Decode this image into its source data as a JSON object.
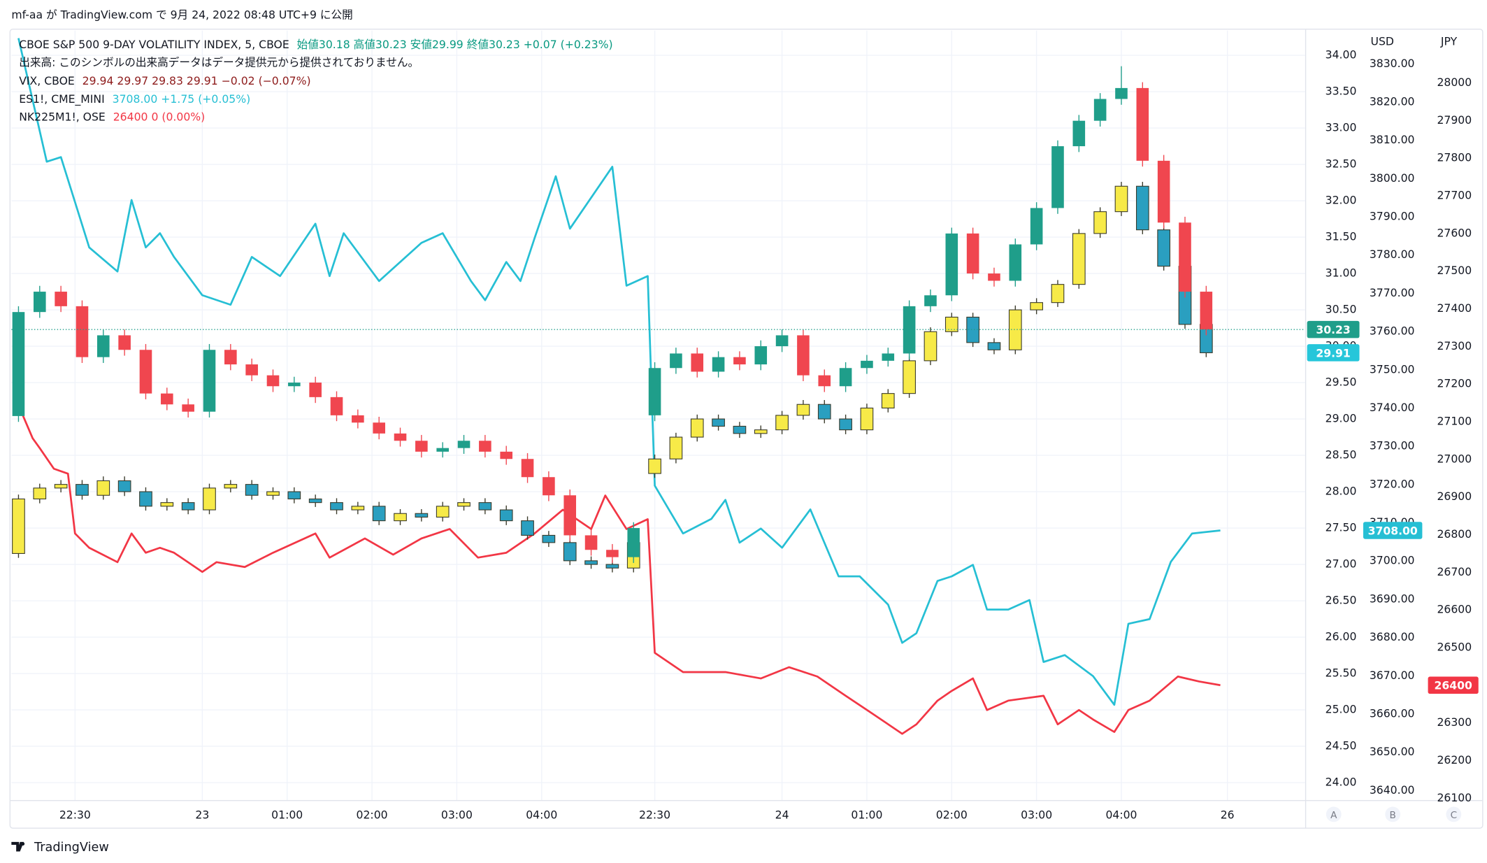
{
  "header": "mf-aa が TradingView.com で 9月 24, 2022 08:48 UTC+9 に公開",
  "footer": "TradingView",
  "controls": [
    "A",
    "B",
    "C"
  ],
  "chart_data": {
    "type": "candlestick",
    "grid": true,
    "volume_note": "出来高: このシンボルの出来高データはデータ提供元から提供されておりません。",
    "y2_label": "USD",
    "y3_label": "JPY",
    "xlim": [
      -1,
      182
    ],
    "xticks": [
      {
        "value": 8,
        "label": "22:30"
      },
      {
        "value": 26,
        "label": "23"
      },
      {
        "value": 38,
        "label": "01:00"
      },
      {
        "value": 50,
        "label": "02:00"
      },
      {
        "value": 62,
        "label": "03:00"
      },
      {
        "value": 74,
        "label": "04:00"
      },
      {
        "value": 90,
        "label": "22:30"
      },
      {
        "value": 108,
        "label": "24"
      },
      {
        "value": 120,
        "label": "01:00"
      },
      {
        "value": 132,
        "label": "02:00"
      },
      {
        "value": 144,
        "label": "03:00"
      },
      {
        "value": 156,
        "label": "04:00"
      },
      {
        "value": 171,
        "label": "26"
      }
    ],
    "ylim": [
      23.76,
      34.34
    ],
    "yticks": [
      {
        "value": 24,
        "label": "24.00"
      },
      {
        "value": 24.5,
        "label": "24.50"
      },
      {
        "value": 25,
        "label": "25.00"
      },
      {
        "value": 25.5,
        "label": "25.50"
      },
      {
        "value": 26,
        "label": "26.00"
      },
      {
        "value": 26.5,
        "label": "26.50"
      },
      {
        "value": 27,
        "label": "27.00"
      },
      {
        "value": 27.5,
        "label": "27.50"
      },
      {
        "value": 28,
        "label": "28.00"
      },
      {
        "value": 28.5,
        "label": "28.50"
      },
      {
        "value": 29,
        "label": "29.00"
      },
      {
        "value": 29.5,
        "label": "29.50"
      },
      {
        "value": 30,
        "label": "30.00"
      },
      {
        "value": 30.5,
        "label": "30.50"
      },
      {
        "value": 31,
        "label": "31.00"
      },
      {
        "value": 31.5,
        "label": "31.50"
      },
      {
        "value": 32,
        "label": "32.00"
      },
      {
        "value": 32.5,
        "label": "32.50"
      },
      {
        "value": 33,
        "label": "33.00"
      },
      {
        "value": 33.5,
        "label": "33.50"
      },
      {
        "value": 34,
        "label": "34.00"
      }
    ],
    "y2lim": [
      3637.5,
      3838.7
    ],
    "y2ticks": [
      {
        "value": 3640,
        "label": "3640.00"
      },
      {
        "value": 3650,
        "label": "3650.00"
      },
      {
        "value": 3660,
        "label": "3660.00"
      },
      {
        "value": 3670,
        "label": "3670.00"
      },
      {
        "value": 3680,
        "label": "3680.00"
      },
      {
        "value": 3690,
        "label": "3690.00"
      },
      {
        "value": 3700,
        "label": "3700.00"
      },
      {
        "value": 3710,
        "label": "3710.00"
      },
      {
        "value": 3720,
        "label": "3720.00"
      },
      {
        "value": 3730,
        "label": "3730.00"
      },
      {
        "value": 3740,
        "label": "3740.00"
      },
      {
        "value": 3750,
        "label": "3750.00"
      },
      {
        "value": 3760,
        "label": "3760.00"
      },
      {
        "value": 3770,
        "label": "3770.00"
      },
      {
        "value": 3780,
        "label": "3780.00"
      },
      {
        "value": 3790,
        "label": "3790.00"
      },
      {
        "value": 3800,
        "label": "3800.00"
      },
      {
        "value": 3810,
        "label": "3810.00"
      },
      {
        "value": 3820,
        "label": "3820.00"
      },
      {
        "value": 3830,
        "label": "3830.00"
      }
    ],
    "y3lim": [
      26095,
      28139
    ],
    "y3ticks": [
      26100,
      26200,
      26300,
      26400,
      26500,
      26600,
      26700,
      26800,
      26900,
      27000,
      27100,
      27200,
      27300,
      27400,
      27500,
      27600,
      27700,
      27800,
      27900,
      28000
    ],
    "series": [
      {
        "name": "NK225M1!, OSE",
        "legend": "26400  0 (0.00%)",
        "type": "line",
        "axis": "y3",
        "color": "#f23645",
        "last_label": "26400",
        "x": [
          0,
          2,
          3,
          5,
          7,
          8,
          10,
          14,
          16,
          18,
          20,
          22,
          26,
          28,
          32,
          36,
          42,
          44,
          49,
          53,
          57,
          61,
          65,
          69,
          73,
          77,
          81,
          83,
          86,
          89,
          90,
          94,
          100,
          105,
          109,
          113,
          117,
          121,
          125,
          127,
          130,
          132,
          135,
          137,
          140,
          145,
          147,
          150,
          152,
          155,
          157,
          160,
          164,
          167,
          170
        ],
        "values": [
          27144,
          27056,
          27030,
          26975,
          26962,
          26803,
          26765,
          26727,
          26803,
          26752,
          26765,
          26752,
          26701,
          26727,
          26714,
          26752,
          26803,
          26739,
          26790,
          26747,
          26790,
          26815,
          26739,
          26752,
          26803,
          26866,
          26815,
          26904,
          26815,
          26841,
          26486,
          26435,
          26435,
          26418,
          26448,
          26423,
          26372,
          26322,
          26271,
          26296,
          26359,
          26385,
          26418,
          26334,
          26359,
          26372,
          26296,
          26334,
          26309,
          26276,
          26334,
          26359,
          26423,
          26410,
          26400
        ]
      },
      {
        "name": "ES1!, CME_MINI",
        "legend": "3708.00  +1.75 (+0.05%)",
        "type": "line",
        "axis": "y2",
        "color": "#26bfd4",
        "last_label": "3708.00",
        "x": [
          0,
          4,
          6,
          10,
          14,
          16,
          18,
          20,
          22,
          26,
          30,
          33,
          37,
          42,
          44,
          46,
          51,
          57,
          60,
          64,
          66,
          69,
          71,
          73,
          76,
          78,
          84,
          86,
          89,
          90,
          94,
          98,
          100,
          102,
          105,
          108,
          112,
          116,
          119,
          123,
          125,
          127,
          130,
          132,
          135,
          137,
          140,
          143,
          145,
          148,
          152,
          155,
          157,
          160,
          163,
          166,
          170
        ],
        "values": [
          3836.7,
          3804.4,
          3805.6,
          3782.0,
          3775.7,
          3794.4,
          3782.0,
          3785.7,
          3779.5,
          3769.5,
          3767.0,
          3779.5,
          3774.5,
          3788.2,
          3774.5,
          3785.7,
          3773.2,
          3783.2,
          3785.7,
          3773.2,
          3768.2,
          3778.2,
          3773.2,
          3784.4,
          3800.6,
          3786.9,
          3803.1,
          3772.0,
          3774.5,
          3719.7,
          3707.2,
          3711.0,
          3716.0,
          3704.8,
          3708.5,
          3703.5,
          3713.5,
          3696.0,
          3696.0,
          3688.6,
          3678.6,
          3681.1,
          3694.8,
          3696.0,
          3699.0,
          3687.3,
          3687.3,
          3689.8,
          3673.6,
          3675.4,
          3669.9,
          3662.4,
          3683.6,
          3684.8,
          3699.8,
          3707.2,
          3708.0
        ]
      },
      {
        "name": "VIX, CBOE",
        "legend": "29.94  29.97  29.83  29.91  −0.02 (−0.07%)",
        "legend_color": "#8e1c1c",
        "type": "candlestick",
        "axis": "y",
        "up_color": "#f7ea48",
        "down_color": "#2a9fc0",
        "border_color": "#3a3a2a",
        "last_label": "29.91",
        "x": [
          0,
          3,
          6,
          9,
          12,
          15,
          18,
          21,
          24,
          27,
          30,
          33,
          36,
          39,
          42,
          45,
          48,
          51,
          54,
          57,
          60,
          63,
          66,
          69,
          72,
          75,
          78,
          81,
          84,
          87,
          90,
          93,
          96,
          99,
          102,
          105,
          108,
          111,
          114,
          117,
          120,
          123,
          126,
          129,
          132,
          135,
          138,
          141,
          144,
          147,
          150,
          153,
          156,
          159,
          162,
          165,
          168
        ],
        "open": [
          27.15,
          27.9,
          28.05,
          28.1,
          27.95,
          28.15,
          28.0,
          27.8,
          27.85,
          27.75,
          28.05,
          28.1,
          27.95,
          28.0,
          27.9,
          27.85,
          27.75,
          27.8,
          27.6,
          27.7,
          27.65,
          27.8,
          27.85,
          27.75,
          27.6,
          27.4,
          27.3,
          27.05,
          27.0,
          26.95,
          28.25,
          28.45,
          28.75,
          29.0,
          28.9,
          28.8,
          28.85,
          29.05,
          29.2,
          29.0,
          28.85,
          29.15,
          29.35,
          29.8,
          30.2,
          30.4,
          30.05,
          29.95,
          30.5,
          30.6,
          30.85,
          31.55,
          31.85,
          32.2,
          31.6,
          31.1,
          30.3
        ],
        "high": [
          27.96,
          28.11,
          28.16,
          28.16,
          28.21,
          28.21,
          28.06,
          27.91,
          27.91,
          28.11,
          28.16,
          28.16,
          28.06,
          28.06,
          27.96,
          27.91,
          27.86,
          27.86,
          27.76,
          27.76,
          27.86,
          27.91,
          27.91,
          27.81,
          27.66,
          27.46,
          27.36,
          27.11,
          27.06,
          27.36,
          28.51,
          28.81,
          29.06,
          29.06,
          28.96,
          28.91,
          29.11,
          29.26,
          29.26,
          29.06,
          29.21,
          29.41,
          29.86,
          30.26,
          30.46,
          30.46,
          30.11,
          30.56,
          30.66,
          30.91,
          31.61,
          31.91,
          32.26,
          32.26,
          31.66,
          31.16,
          30.36
        ],
        "low": [
          27.09,
          27.84,
          27.99,
          27.89,
          27.89,
          27.94,
          27.74,
          27.74,
          27.69,
          27.69,
          27.99,
          27.89,
          27.89,
          27.84,
          27.79,
          27.69,
          27.69,
          27.54,
          27.54,
          27.59,
          27.59,
          27.74,
          27.69,
          27.54,
          27.34,
          27.24,
          26.99,
          26.94,
          26.89,
          26.89,
          28.19,
          28.39,
          28.69,
          28.84,
          28.74,
          28.74,
          28.79,
          28.99,
          28.94,
          28.79,
          28.79,
          29.09,
          29.29,
          29.74,
          30.14,
          29.99,
          29.89,
          29.89,
          30.44,
          30.54,
          30.79,
          31.49,
          31.79,
          31.54,
          31.04,
          30.24,
          29.85
        ],
        "close": [
          27.9,
          28.05,
          28.1,
          27.95,
          28.15,
          28.0,
          27.8,
          27.85,
          27.75,
          28.05,
          28.1,
          27.95,
          28.0,
          27.9,
          27.85,
          27.75,
          27.8,
          27.6,
          27.7,
          27.65,
          27.8,
          27.85,
          27.75,
          27.6,
          27.4,
          27.3,
          27.05,
          27.0,
          26.95,
          27.3,
          28.45,
          28.75,
          29.0,
          28.9,
          28.8,
          28.85,
          29.05,
          29.2,
          29.0,
          28.85,
          29.15,
          29.35,
          29.8,
          30.2,
          30.4,
          30.05,
          29.95,
          30.5,
          30.6,
          30.85,
          31.55,
          31.85,
          32.2,
          31.6,
          31.1,
          30.3,
          29.91
        ]
      },
      {
        "name": "CBOE S&P 500 9-DAY VOLATILITY INDEX, 5, CBOE",
        "legend": "始値30.18 高値30.23 安値29.99 終値30.23 +0.07 (+0.23%)",
        "legend_color": "#089981",
        "type": "candlestick",
        "axis": "y",
        "up_color": "#1f9e8a",
        "down_color": "#f0464f",
        "last_label": "30.23",
        "last_line": true,
        "x": [
          0,
          3,
          6,
          9,
          12,
          15,
          18,
          21,
          24,
          27,
          30,
          33,
          36,
          39,
          42,
          45,
          48,
          51,
          54,
          57,
          60,
          63,
          66,
          69,
          72,
          75,
          78,
          81,
          84,
          87,
          90,
          93,
          96,
          99,
          102,
          105,
          108,
          111,
          114,
          117,
          120,
          123,
          126,
          129,
          132,
          135,
          138,
          141,
          144,
          147,
          150,
          153,
          156,
          159,
          162,
          165,
          168
        ],
        "open": [
          29.04,
          30.47,
          30.75,
          30.55,
          29.85,
          30.15,
          29.95,
          29.35,
          29.2,
          29.1,
          29.95,
          29.75,
          29.6,
          29.45,
          29.5,
          29.3,
          29.05,
          28.95,
          28.8,
          28.7,
          28.55,
          28.6,
          28.7,
          28.55,
          28.45,
          28.2,
          27.95,
          27.4,
          27.2,
          27.1,
          29.05,
          29.7,
          29.9,
          29.65,
          29.85,
          29.75,
          30.0,
          30.15,
          29.6,
          29.45,
          29.7,
          29.8,
          29.9,
          30.55,
          30.7,
          31.55,
          31.0,
          30.9,
          31.4,
          31.9,
          32.75,
          33.1,
          33.4,
          33.55,
          32.55,
          31.7,
          30.75
        ],
        "high": [
          30.55,
          30.83,
          30.83,
          30.63,
          30.23,
          30.23,
          30.03,
          29.43,
          29.28,
          30.03,
          30.03,
          29.83,
          29.68,
          29.58,
          29.58,
          29.38,
          29.13,
          29.03,
          28.88,
          28.78,
          28.68,
          28.78,
          28.78,
          28.63,
          28.53,
          28.28,
          28.03,
          27.48,
          27.28,
          27.58,
          29.78,
          29.98,
          29.98,
          29.93,
          29.93,
          30.08,
          30.23,
          30.23,
          29.68,
          29.78,
          29.88,
          29.98,
          30.63,
          30.78,
          31.63,
          31.63,
          31.08,
          31.48,
          31.98,
          32.83,
          33.18,
          33.48,
          33.85,
          33.63,
          32.63,
          31.78,
          30.83
        ],
        "low": [
          28.96,
          30.39,
          30.47,
          29.77,
          29.77,
          29.87,
          29.27,
          29.12,
          29.02,
          29.02,
          29.67,
          29.52,
          29.37,
          29.37,
          29.22,
          28.97,
          28.87,
          28.72,
          28.62,
          28.47,
          28.47,
          28.52,
          28.47,
          28.37,
          28.12,
          27.87,
          27.32,
          27.12,
          27.02,
          27.02,
          28.97,
          29.62,
          29.57,
          29.57,
          29.67,
          29.67,
          29.92,
          29.52,
          29.37,
          29.37,
          29.62,
          29.72,
          29.82,
          30.47,
          30.62,
          30.92,
          30.82,
          30.82,
          31.32,
          31.82,
          32.67,
          33.02,
          33.32,
          32.47,
          31.62,
          30.67,
          30.15
        ],
        "close": [
          30.47,
          30.75,
          30.55,
          29.85,
          30.15,
          29.95,
          29.35,
          29.2,
          29.1,
          29.95,
          29.75,
          29.6,
          29.45,
          29.5,
          29.3,
          29.05,
          28.95,
          28.8,
          28.7,
          28.55,
          28.6,
          28.7,
          28.55,
          28.45,
          28.2,
          27.95,
          27.4,
          27.2,
          27.1,
          27.5,
          29.7,
          29.9,
          29.65,
          29.85,
          29.75,
          30.0,
          30.15,
          29.6,
          29.45,
          29.7,
          29.8,
          29.9,
          30.55,
          30.7,
          31.55,
          31.0,
          30.9,
          31.4,
          31.9,
          32.75,
          33.1,
          33.4,
          33.55,
          32.55,
          31.7,
          30.75,
          30.23
        ]
      }
    ]
  }
}
